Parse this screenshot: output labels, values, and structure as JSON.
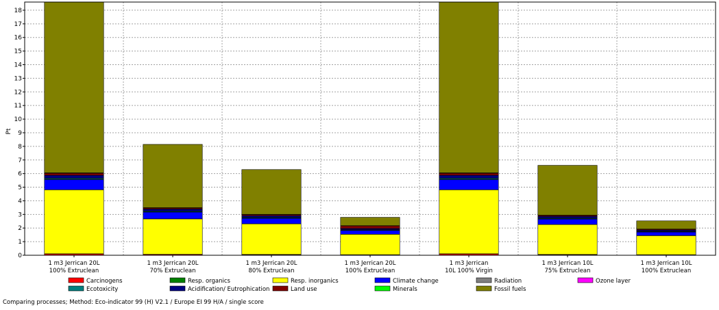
{
  "chart_data": {
    "type": "bar",
    "stacked": true,
    "ylabel": "Pt",
    "ylim": [
      0,
      18.6
    ],
    "yticks": [
      0,
      1,
      2,
      3,
      4,
      5,
      6,
      7,
      8,
      9,
      10,
      11,
      12,
      13,
      14,
      15,
      16,
      17,
      18
    ],
    "grid": true,
    "legend_position": "bottom",
    "categories": [
      [
        "1 m3 Jerrican 20L",
        "100% Extruclean"
      ],
      [
        "1 m3 Jerrican 20L",
        "70% Extruclean"
      ],
      [
        "1 m3 Jerrican 20L",
        "80% Extruclean"
      ],
      [
        "1 m3 Jerrican 20L",
        "100% Extruclean"
      ],
      [
        "1 m3 Jerrican",
        "10L 100% Virgin"
      ],
      [
        "1 m3 Jerrican 10L",
        "75% Extruclean"
      ],
      [
        "1 m3 Jerrican 10L",
        "100% Extruclean"
      ]
    ],
    "series": [
      {
        "name": "Carcinogens",
        "color": "#ff0000",
        "values": [
          0.1,
          0.06,
          0.05,
          0.03,
          0.1,
          0.05,
          0.03
        ]
      },
      {
        "name": "Resp. organics",
        "color": "#008000",
        "values": [
          0.01,
          0.01,
          0.01,
          0.01,
          0.01,
          0.01,
          0.01
        ]
      },
      {
        "name": "Resp. inorganics",
        "color": "#ffff00",
        "values": [
          4.7,
          2.6,
          2.25,
          1.5,
          4.7,
          2.2,
          1.4
        ]
      },
      {
        "name": "Climate change",
        "color": "#0000ff",
        "values": [
          0.75,
          0.5,
          0.4,
          0.28,
          0.75,
          0.4,
          0.27
        ]
      },
      {
        "name": "Radiation",
        "color": "#808080",
        "values": [
          0.01,
          0.01,
          0.01,
          0.01,
          0.01,
          0.01,
          0.01
        ]
      },
      {
        "name": "Ozone layer",
        "color": "#ff00ff",
        "values": [
          0.005,
          0.005,
          0.005,
          0.005,
          0.005,
          0.005,
          0.005
        ]
      },
      {
        "name": "Ecotoxicity",
        "color": "#008080",
        "values": [
          0.08,
          0.06,
          0.05,
          0.04,
          0.08,
          0.05,
          0.04
        ]
      },
      {
        "name": "Acidification/ Eutrophication",
        "color": "#000080",
        "values": [
          0.22,
          0.15,
          0.13,
          0.09,
          0.22,
          0.13,
          0.09
        ]
      },
      {
        "name": "Land use",
        "color": "#800000",
        "values": [
          0.15,
          0.08,
          0.08,
          0.2,
          0.15,
          0.07,
          0.06
        ]
      },
      {
        "name": "Minerals",
        "color": "#00ff00",
        "values": [
          0.03,
          0.02,
          0.02,
          0.01,
          0.03,
          0.02,
          0.01
        ]
      },
      {
        "name": "Fossil fuels",
        "color": "#808000",
        "values": [
          12.55,
          4.65,
          3.29,
          0.61,
          12.55,
          3.66,
          0.6
        ]
      }
    ]
  },
  "footer": {
    "text": "Comparing processes;  Method: Eco-indicator 99 (H) V2.1 / Europe EI 99 H/A / single score"
  }
}
